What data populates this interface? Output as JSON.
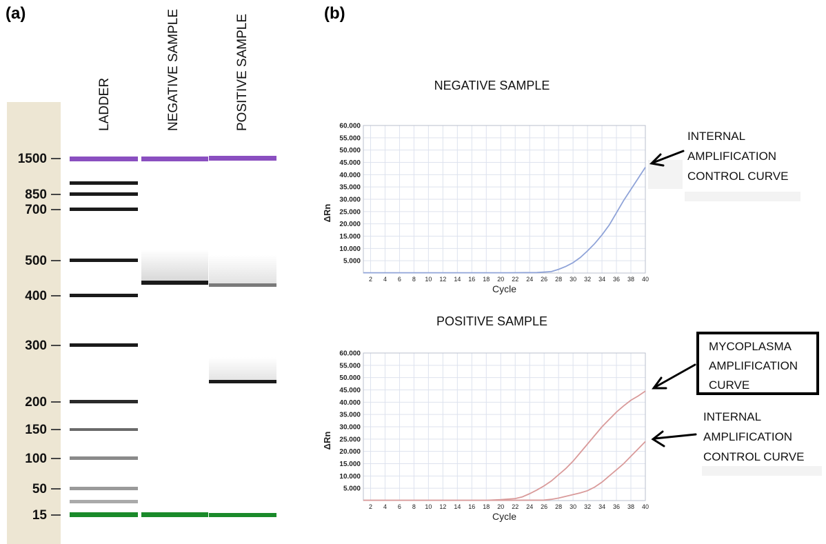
{
  "panels": {
    "a": "(a)",
    "b": "(b)"
  },
  "gel": {
    "lanes": [
      "LADDER",
      "NEGATIVE SAMPLE",
      "POSITIVE SAMPLE"
    ],
    "size_labels": [
      "1500",
      "850",
      "700",
      "500",
      "400",
      "300",
      "200",
      "150",
      "100",
      "50",
      "15"
    ],
    "ladder_bands": [
      1500,
      1000,
      850,
      700,
      500,
      400,
      300,
      200,
      150,
      100,
      50,
      30,
      15
    ],
    "negative_bands": [
      1500,
      430,
      15
    ],
    "positive_bands": [
      1500,
      430,
      240,
      15
    ],
    "colors": {
      "upper_marker": "#8a4fc0",
      "lower_marker": "#1a8a2a",
      "sidebar": "#ede6d3"
    }
  },
  "chart_data": [
    {
      "type": "line",
      "title": "NEGATIVE SAMPLE",
      "xlabel": "Cycle",
      "ylabel": "ΔRn",
      "x_ticks": [
        2,
        4,
        6,
        8,
        10,
        12,
        14,
        16,
        18,
        20,
        22,
        24,
        26,
        28,
        30,
        32,
        34,
        36,
        38,
        40
      ],
      "y_ticks": [
        "5.000",
        "10.000",
        "15.000",
        "20.000",
        "25.000",
        "30.000",
        "35.000",
        "40.000",
        "45.000",
        "50.000",
        "55.000",
        "60.000"
      ],
      "xlim": [
        1,
        40
      ],
      "ylim": [
        0,
        60
      ],
      "grid": true,
      "series": [
        {
          "color": "#8fa3d8",
          "x": [
            1,
            5,
            9,
            13,
            17,
            21,
            25,
            27,
            28,
            29,
            30,
            31,
            32,
            33,
            34,
            35,
            36,
            37,
            38,
            39,
            40
          ],
          "y": [
            0.1,
            0.1,
            0.1,
            0.1,
            0.1,
            0.1,
            0.2,
            0.6,
            1.5,
            2.7,
            4.2,
            6.3,
            9,
            12,
            15.5,
            19.5,
            24.5,
            29.5,
            34,
            38.5,
            43
          ]
        }
      ]
    },
    {
      "type": "line",
      "title": "POSITIVE SAMPLE",
      "xlabel": "Cycle",
      "ylabel": "ΔRn",
      "x_ticks": [
        2,
        4,
        6,
        8,
        10,
        12,
        14,
        16,
        18,
        20,
        22,
        24,
        26,
        28,
        30,
        32,
        34,
        36,
        38,
        40
      ],
      "y_ticks": [
        "5.000",
        "10.000",
        "15.000",
        "20.000",
        "25.000",
        "30.000",
        "35.000",
        "40.000",
        "45.000",
        "50.000",
        "55.000",
        "60.000"
      ],
      "xlim": [
        1,
        40
      ],
      "ylim": [
        0,
        60
      ],
      "grid": true,
      "series": [
        {
          "color": "#d99a9a",
          "x": [
            1,
            10,
            18,
            20,
            22,
            23,
            24,
            25,
            26,
            27,
            28,
            29,
            30,
            31,
            32,
            33,
            34,
            35,
            36,
            37,
            38,
            39,
            40
          ],
          "y": [
            0.1,
            0.1,
            0.1,
            0.4,
            0.8,
            1.5,
            2.8,
            4.3,
            6,
            8,
            10.5,
            13,
            16,
            19.5,
            23,
            26.5,
            30,
            33,
            36,
            38.5,
            40.8,
            42.5,
            44.5
          ]
        },
        {
          "color": "#d99a9a",
          "x": [
            1,
            20,
            26,
            27,
            28,
            29,
            30,
            31,
            32,
            33,
            34,
            35,
            36,
            37,
            38,
            39,
            40
          ],
          "y": [
            0.1,
            0.1,
            0.2,
            0.5,
            1,
            1.7,
            2.4,
            3.1,
            4,
            5.5,
            7.5,
            10,
            12.5,
            15,
            18,
            21,
            24
          ]
        }
      ]
    }
  ],
  "annotations": {
    "negative_iac": [
      "INTERNAL",
      "AMPLIFICATION",
      "CONTROL CURVE"
    ],
    "mycoplasma": [
      "MYCOPLASMA",
      "AMPLIFICATION",
      "CURVE"
    ],
    "positive_iac": [
      "INTERNAL",
      "AMPLIFICATION",
      "CONTROL CURVE"
    ]
  }
}
